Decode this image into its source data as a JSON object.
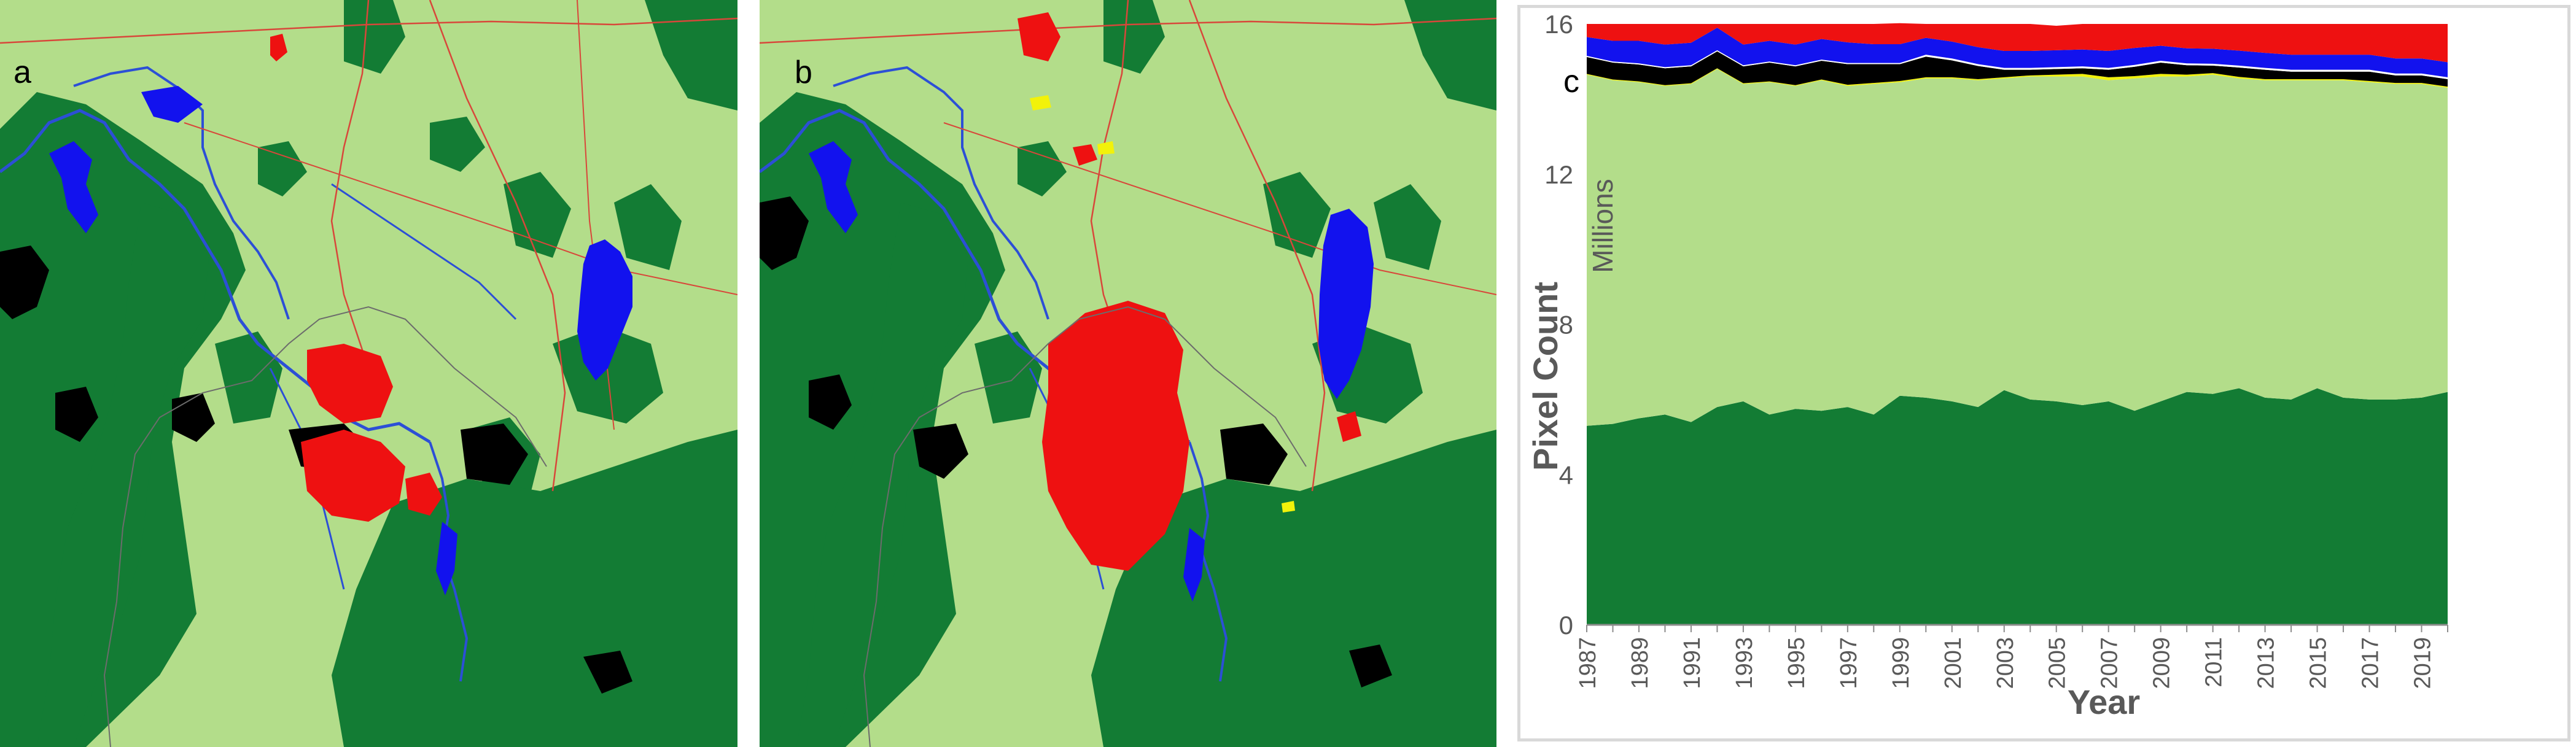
{
  "panels": {
    "a": {
      "label": "a"
    },
    "b": {
      "label": "b"
    },
    "c": {
      "label": "c"
    }
  },
  "colors": {
    "forest": "#137c34",
    "grassland": "#b3dd8a",
    "water": "#1212ee",
    "urban": "#ee1111",
    "barren": "#000000",
    "yellow": "#f2f20a",
    "river": "#2c4fd6",
    "road": "#d8473a",
    "boundary": "#6c6c6c"
  },
  "chart_data": {
    "type": "area",
    "title": "",
    "xlabel": "Year",
    "ylabel": "Pixel Count",
    "yunit": "Millions",
    "ylim": [
      0,
      16
    ],
    "yticks": [
      "0",
      "4",
      "8",
      "12",
      "16"
    ],
    "grid": false,
    "legend": "none",
    "x": [
      1987,
      1988,
      1989,
      1990,
      1991,
      1992,
      1993,
      1994,
      1995,
      1996,
      1997,
      1998,
      1999,
      2000,
      2001,
      2002,
      2003,
      2004,
      2005,
      2006,
      2007,
      2008,
      2009,
      2010,
      2011,
      2012,
      2013,
      2014,
      2015,
      2016,
      2017,
      2018,
      2019,
      2020
    ],
    "xtick_labels": [
      "1987",
      "1989",
      "1991",
      "1993",
      "1995",
      "1997",
      "1999",
      "2001",
      "2003",
      "2005",
      "2007",
      "2009",
      "2011",
      "2013",
      "2015",
      "2017",
      "2019"
    ],
    "series": [
      {
        "color": "#137c34",
        "values": [
          5.3,
          5.35,
          5.5,
          5.6,
          5.4,
          5.8,
          5.95,
          5.6,
          5.75,
          5.7,
          5.8,
          5.6,
          6.1,
          6.05,
          5.95,
          5.8,
          6.25,
          6.0,
          5.95,
          5.85,
          5.95,
          5.7,
          5.95,
          6.2,
          6.15,
          6.3,
          6.05,
          6.0,
          6.3,
          6.05,
          6.0,
          6.0,
          6.05,
          6.2
        ]
      },
      {
        "color": "#b3dd8a",
        "values": [
          9.35,
          9.15,
          8.95,
          8.75,
          9.0,
          9.0,
          8.45,
          8.85,
          8.6,
          8.8,
          8.55,
          8.8,
          8.35,
          8.5,
          8.6,
          8.7,
          8.3,
          8.6,
          8.65,
          8.75,
          8.55,
          8.85,
          8.65,
          8.4,
          8.5,
          8.25,
          8.45,
          8.5,
          8.2,
          8.45,
          8.45,
          8.4,
          8.35,
          8.1
        ]
      },
      {
        "color": "#f2f20a",
        "values": [
          0.02,
          0.02,
          0.02,
          0.02,
          0.02,
          0.02,
          0.02,
          0.02,
          0.02,
          0.02,
          0.03,
          0.03,
          0.03,
          0.03,
          0.03,
          0.03,
          0.03,
          0.03,
          0.05,
          0.07,
          0.08,
          0.06,
          0.07,
          0.05,
          0.04,
          0.04,
          0.03,
          0.03,
          0.03,
          0.03,
          0.03,
          0.03,
          0.03,
          0.03
        ]
      },
      {
        "color": "#000000",
        "values": [
          0.45,
          0.45,
          0.45,
          0.45,
          0.45,
          0.45,
          0.45,
          0.5,
          0.5,
          0.5,
          0.55,
          0.5,
          0.45,
          0.55,
          0.45,
          0.35,
          0.2,
          0.15,
          0.15,
          0.15,
          0.2,
          0.25,
          0.3,
          0.25,
          0.2,
          0.25,
          0.25,
          0.2,
          0.2,
          0.2,
          0.25,
          0.2,
          0.2,
          0.2
        ]
      },
      {
        "color": "#ffffff",
        "values": [
          0.03,
          0.03,
          0.03,
          0.03,
          0.03,
          0.03,
          0.03,
          0.03,
          0.03,
          0.03,
          0.03,
          0.03,
          0.03,
          0.05,
          0.05,
          0.05,
          0.05,
          0.05,
          0.05,
          0.05,
          0.05,
          0.05,
          0.05,
          0.05,
          0.05,
          0.05,
          0.05,
          0.05,
          0.05,
          0.05,
          0.05,
          0.05,
          0.05,
          0.05
        ]
      },
      {
        "color": "#1212ee",
        "values": [
          0.5,
          0.55,
          0.6,
          0.6,
          0.6,
          0.6,
          0.55,
          0.55,
          0.55,
          0.55,
          0.55,
          0.5,
          0.5,
          0.45,
          0.45,
          0.45,
          0.45,
          0.45,
          0.45,
          0.45,
          0.45,
          0.45,
          0.4,
          0.4,
          0.4,
          0.4,
          0.4,
          0.4,
          0.4,
          0.4,
          0.4,
          0.4,
          0.4,
          0.4
        ]
      },
      {
        "color": "#ee1111",
        "values": [
          0.35,
          0.45,
          0.45,
          0.55,
          0.5,
          0.1,
          0.55,
          0.45,
          0.55,
          0.4,
          0.49,
          0.54,
          0.56,
          0.37,
          0.47,
          0.62,
          0.72,
          0.72,
          0.65,
          0.68,
          0.72,
          0.64,
          0.58,
          0.65,
          0.66,
          0.71,
          0.77,
          0.82,
          0.82,
          0.82,
          0.82,
          0.92,
          0.92,
          1.02
        ]
      }
    ]
  }
}
